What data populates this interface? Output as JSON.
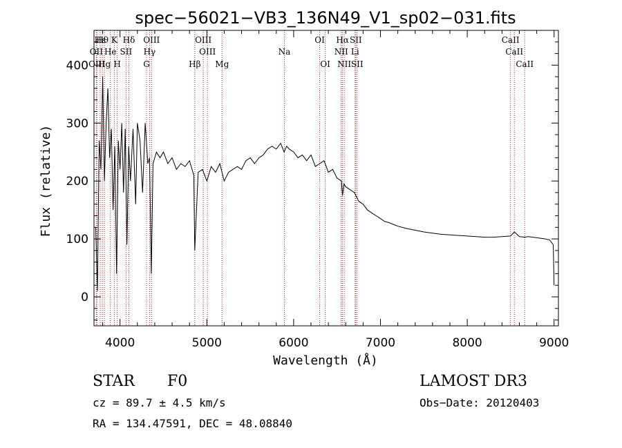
{
  "chart_data": {
    "type": "line",
    "title": "spec−56021−VB3_136N49_V1_sp02−031.fits",
    "xlabel": "Wavelength (Å)",
    "ylabel": "Flux (relative)",
    "xlim": [
      3700,
      9050
    ],
    "ylim": [
      -50,
      460
    ],
    "xticks": [
      4000,
      5000,
      6000,
      7000,
      8000,
      9000
    ],
    "yticks": [
      0,
      100,
      200,
      300,
      400
    ],
    "grid": false,
    "series": [
      {
        "name": "flux",
        "x": [
          3720,
          3740,
          3760,
          3780,
          3800,
          3820,
          3840,
          3860,
          3880,
          3900,
          3920,
          3940,
          3960,
          3980,
          4000,
          4020,
          4040,
          4060,
          4080,
          4100,
          4120,
          4150,
          4180,
          4200,
          4230,
          4260,
          4290,
          4320,
          4340,
          4360,
          4380,
          4420,
          4460,
          4500,
          4550,
          4600,
          4650,
          4700,
          4750,
          4800,
          4850,
          4861,
          4900,
          4950,
          5000,
          5050,
          5100,
          5150,
          5200,
          5250,
          5300,
          5350,
          5400,
          5450,
          5500,
          5550,
          5600,
          5650,
          5700,
          5750,
          5800,
          5850,
          5890,
          5920,
          5950,
          6000,
          6050,
          6100,
          6150,
          6200,
          6250,
          6300,
          6350,
          6400,
          6450,
          6500,
          6550,
          6563,
          6580,
          6600,
          6650,
          6700,
          6750,
          6800,
          6850,
          6900,
          6950,
          7000,
          7050,
          7100,
          7150,
          7200,
          7300,
          7400,
          7500,
          7600,
          7700,
          7800,
          7900,
          8000,
          8100,
          8200,
          8300,
          8400,
          8500,
          8542,
          8600,
          8662,
          8700,
          8800,
          8900,
          8950,
          8990,
          9000
        ],
        "values": [
          120,
          10,
          270,
          220,
          380,
          200,
          300,
          360,
          240,
          290,
          150,
          260,
          40,
          270,
          220,
          300,
          180,
          290,
          90,
          260,
          200,
          290,
          160,
          300,
          270,
          180,
          300,
          230,
          240,
          40,
          230,
          250,
          240,
          250,
          230,
          240,
          220,
          230,
          225,
          235,
          210,
          80,
          215,
          220,
          200,
          225,
          215,
          230,
          200,
          215,
          220,
          225,
          220,
          235,
          240,
          230,
          240,
          245,
          255,
          260,
          255,
          265,
          250,
          260,
          255,
          250,
          240,
          245,
          235,
          245,
          225,
          230,
          235,
          215,
          220,
          205,
          200,
          175,
          195,
          190,
          185,
          180,
          165,
          160,
          150,
          145,
          140,
          135,
          130,
          128,
          125,
          122,
          118,
          115,
          112,
          110,
          108,
          107,
          106,
          105,
          104,
          103,
          103,
          104,
          105,
          112,
          104,
          103,
          104,
          102,
          100,
          98,
          90,
          20
        ]
      }
    ],
    "lines": [
      {
        "label": "Hε",
        "x": 3771,
        "row": 1
      },
      {
        "label": "OII",
        "x": 3727,
        "row": 2
      },
      {
        "label": "OIII",
        "x": 3733,
        "row": 3
      },
      {
        "label": "Hg",
        "x": 3820,
        "row": 3
      },
      {
        "label": "Hθ",
        "x": 3797,
        "row": 1
      },
      {
        "label": "He",
        "x": 3889,
        "row": 2
      },
      {
        "label": "K",
        "x": 3934,
        "row": 1
      },
      {
        "label": "H",
        "x": 3968,
        "row": 3
      },
      {
        "label": "Hδ",
        "x": 4102,
        "row": 1
      },
      {
        "label": "SII",
        "x": 4069,
        "row": 2
      },
      {
        "label": "OIII",
        "x": 4363,
        "row": 1
      },
      {
        "label": "Hγ",
        "x": 4340,
        "row": 2
      },
      {
        "label": "G",
        "x": 4305,
        "row": 3
      },
      {
        "label": "Hβ",
        "x": 4861,
        "row": 3
      },
      {
        "label": "OIII",
        "x": 4959,
        "row": 1
      },
      {
        "label": "OIII",
        "x": 5007,
        "row": 2
      },
      {
        "label": "Mg",
        "x": 5175,
        "row": 3
      },
      {
        "label": "Na",
        "x": 5893,
        "row": 2
      },
      {
        "label": "OI",
        "x": 6300,
        "row": 1
      },
      {
        "label": "OI",
        "x": 6364,
        "row": 3
      },
      {
        "label": "Hα",
        "x": 6563,
        "row": 1
      },
      {
        "label": "NII",
        "x": 6548,
        "row": 2
      },
      {
        "label": "NII",
        "x": 6583,
        "row": 3
      },
      {
        "label": "SII",
        "x": 6716,
        "row": 1
      },
      {
        "label": "Li",
        "x": 6708,
        "row": 2
      },
      {
        "label": "SII",
        "x": 6731,
        "row": 3
      },
      {
        "label": "CaII",
        "x": 8498,
        "row": 1
      },
      {
        "label": "CaII",
        "x": 8542,
        "row": 2
      },
      {
        "label": "CaII",
        "x": 8662,
        "row": 3
      }
    ]
  },
  "info": {
    "object_class": "STAR",
    "subclass": "F0",
    "survey": "LAMOST DR3",
    "redshift": "cz = 89.7 ± 4.5 km/s",
    "obs_date": "Obs−Date: 20120403",
    "coords": "RA = 134.47591, DEC =  48.08840"
  }
}
